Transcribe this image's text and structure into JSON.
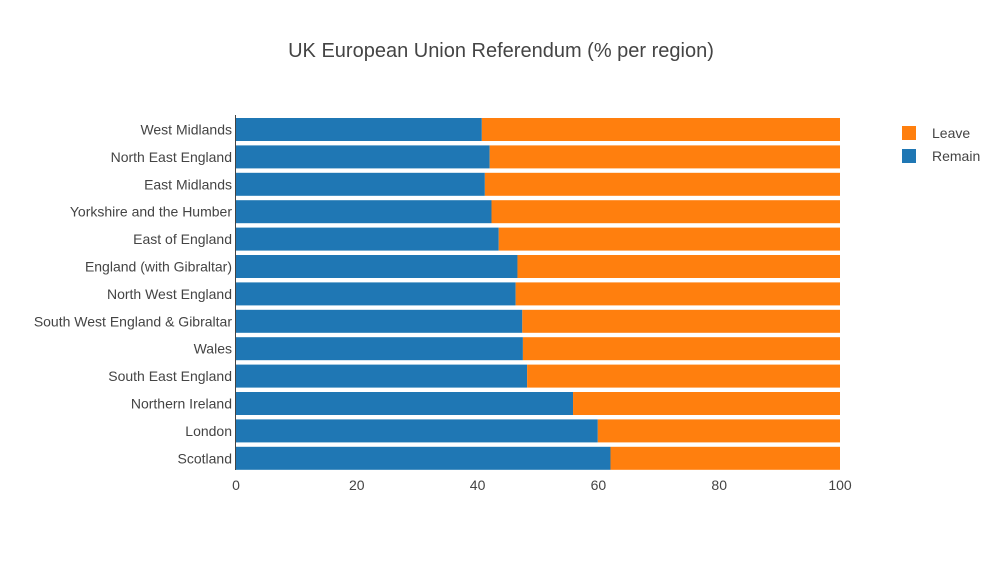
{
  "chart_data": {
    "type": "bar",
    "orientation": "horizontal",
    "stacked": true,
    "title": "UK European Union Referendum (% per region)",
    "xlabel": "",
    "ylabel": "",
    "xlim": [
      0,
      100
    ],
    "xticks": [
      0,
      20,
      40,
      60,
      80,
      100
    ],
    "grid": false,
    "legend_position": "top-right",
    "categories": [
      "West Midlands",
      "North East England",
      "East Midlands",
      "Yorkshire and the Humber",
      "East of England",
      "England (with Gibraltar)",
      "North West England",
      "South West England & Gibraltar",
      "Wales",
      "South East England",
      "Northern Ireland",
      "London",
      "Scotland"
    ],
    "series": [
      {
        "name": "Remain",
        "color": "#1f77b4",
        "values": [
          40.7,
          42.0,
          41.2,
          42.3,
          43.5,
          46.6,
          46.3,
          47.4,
          47.5,
          48.2,
          55.8,
          59.9,
          62.0
        ]
      },
      {
        "name": "Leave",
        "color": "#ff7f0e",
        "values": [
          59.3,
          58.0,
          58.8,
          57.7,
          56.5,
          53.4,
          53.7,
          52.6,
          52.5,
          51.8,
          44.2,
          40.1,
          38.0
        ]
      }
    ],
    "legend": [
      "Leave",
      "Remain"
    ]
  }
}
